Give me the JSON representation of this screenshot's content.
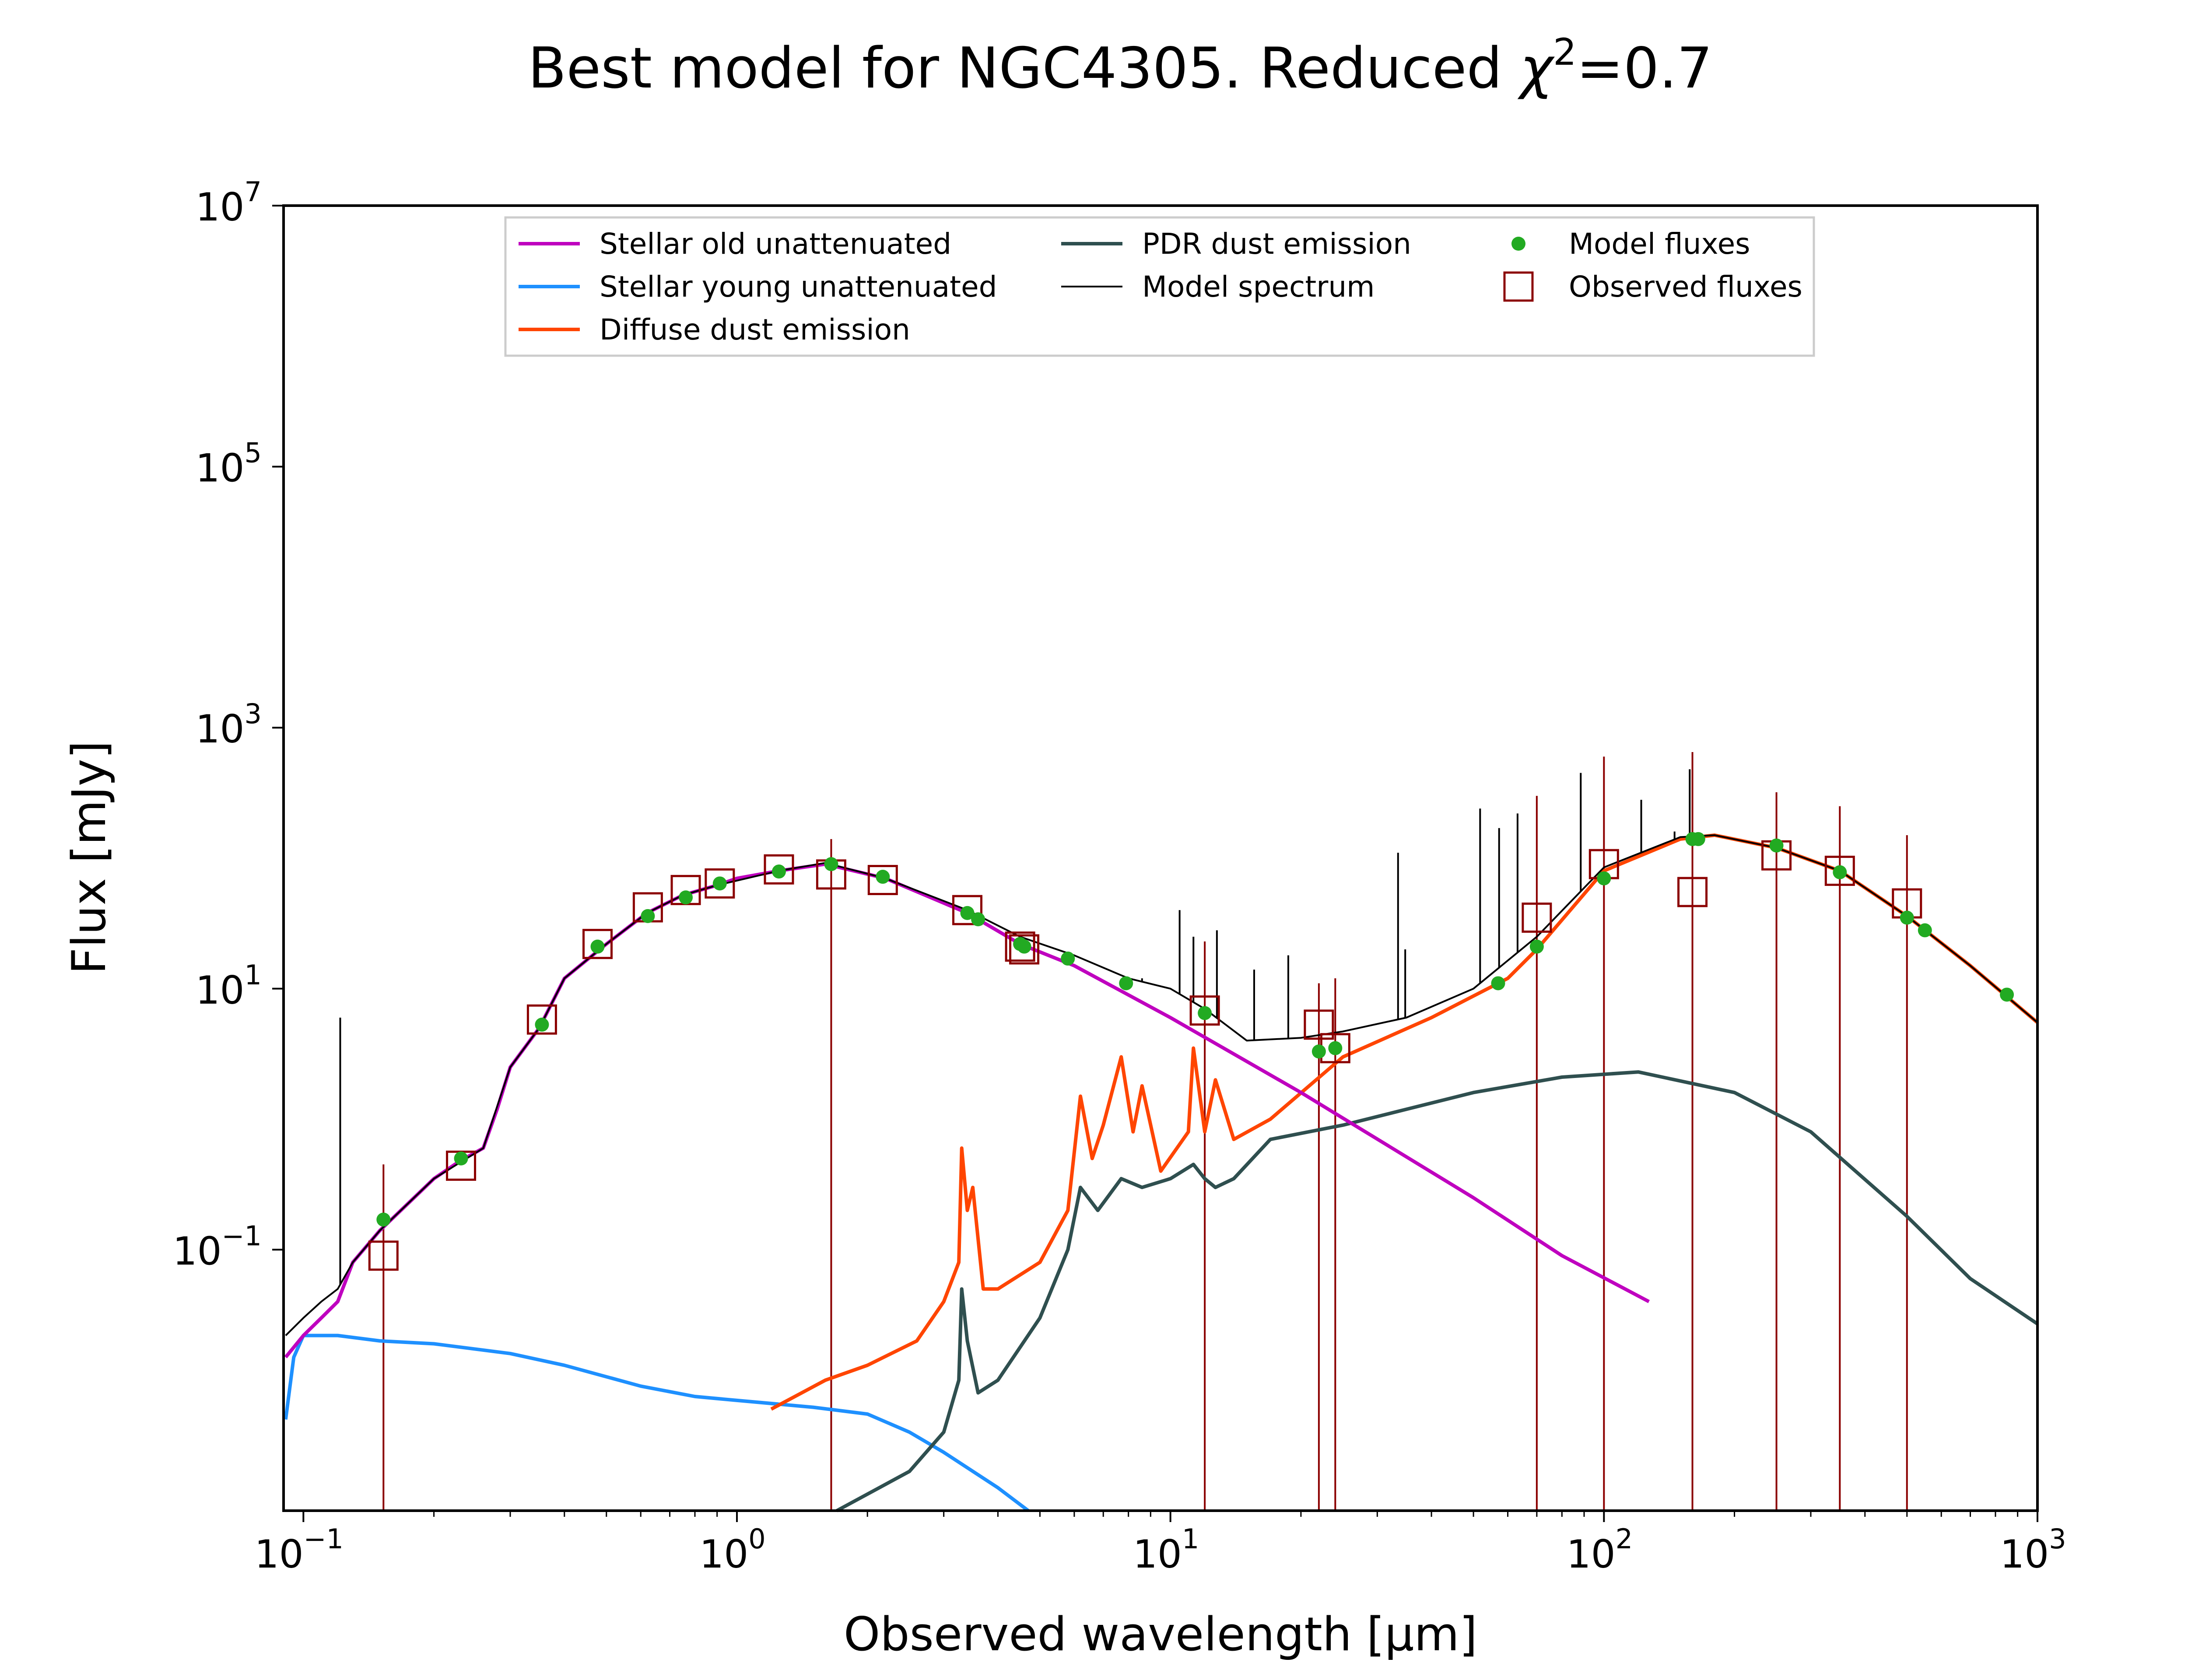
{
  "chart_data": {
    "type": "line",
    "title_text": "Best model for NGC4305. Reduced ",
    "title_chi": "χ",
    "title_sup": "2",
    "title_value": "=0.7",
    "xlabel": "Observed wavelength [μm]",
    "ylabel": "Flux [mJy]",
    "xscale": "log",
    "yscale": "log",
    "xlim": [
      0.09,
      1000
    ],
    "ylim": [
      0.001,
      10000000
    ],
    "x_ticks": [
      {
        "value": 0.1,
        "base": "10",
        "exp": "−1"
      },
      {
        "value": 1,
        "base": "10",
        "exp": "0"
      },
      {
        "value": 10,
        "base": "10",
        "exp": "1"
      },
      {
        "value": 100,
        "base": "10",
        "exp": "2"
      },
      {
        "value": 1000,
        "base": "10",
        "exp": "3"
      }
    ],
    "y_ticks": [
      {
        "value": 0.1,
        "base": "10",
        "exp": "−1"
      },
      {
        "value": 10,
        "base": "10",
        "exp": "1"
      },
      {
        "value": 1000,
        "base": "10",
        "exp": "3"
      },
      {
        "value": 100000,
        "base": "10",
        "exp": "5"
      },
      {
        "value": 10000000,
        "base": "10",
        "exp": "7"
      }
    ],
    "legend_position": "top-center",
    "colors": {
      "stellar_old": "#bf00bf",
      "stellar_young": "#1e90ff",
      "diffuse_dust": "#ff4500",
      "pdr_dust": "#2f4f4f",
      "model_spectrum": "#000000",
      "model_fluxes": "#22aa22",
      "observed_fluxes": "#8b0000"
    },
    "legend": [
      {
        "name": "Stellar old unattenuated",
        "kind": "line",
        "color_key": "stellar_old"
      },
      {
        "name": "Stellar young unattenuated",
        "kind": "line",
        "color_key": "stellar_young"
      },
      {
        "name": "Diffuse dust emission",
        "kind": "line",
        "color_key": "diffuse_dust"
      },
      {
        "name": "PDR dust emission",
        "kind": "line",
        "color_key": "pdr_dust"
      },
      {
        "name": "Model spectrum",
        "kind": "thin",
        "color_key": "model_spectrum"
      },
      {
        "name": "Model fluxes",
        "kind": "dot",
        "color_key": "model_fluxes"
      },
      {
        "name": "Observed fluxes",
        "kind": "square",
        "color_key": "observed_fluxes"
      }
    ],
    "series": [
      {
        "name": "Stellar old unattenuated",
        "color_key": "stellar_old",
        "x": [
          0.091,
          0.1,
          0.11,
          0.12,
          0.13,
          0.15,
          0.18,
          0.2,
          0.23,
          0.26,
          0.28,
          0.3,
          0.35,
          0.4,
          0.5,
          0.62,
          0.75,
          0.9,
          1.0,
          1.25,
          1.6,
          2.2,
          3.4,
          4.5,
          6.0,
          10,
          20,
          50,
          80,
          127
        ],
        "y": [
          0.015,
          0.022,
          0.03,
          0.04,
          0.08,
          0.14,
          0.25,
          0.35,
          0.48,
          0.6,
          1.2,
          2.5,
          5.0,
          12,
          22,
          38,
          52,
          62,
          70,
          80,
          90,
          70,
          38,
          22,
          15,
          6,
          1.6,
          0.25,
          0.09,
          0.04
        ]
      },
      {
        "name": "Stellar young unattenuated",
        "color_key": "stellar_young",
        "x": [
          0.091,
          0.095,
          0.1,
          0.12,
          0.15,
          0.2,
          0.3,
          0.4,
          0.6,
          0.8,
          1.0,
          1.5,
          2.0,
          2.5,
          3.0,
          4.0,
          4.7
        ],
        "y": [
          0.005,
          0.015,
          0.022,
          0.022,
          0.02,
          0.019,
          0.016,
          0.013,
          0.009,
          0.0075,
          0.007,
          0.0062,
          0.0055,
          0.004,
          0.0028,
          0.0015,
          0.001
        ]
      },
      {
        "name": "Diffuse dust emission",
        "color_key": "diffuse_dust",
        "x": [
          1.2,
          1.6,
          2.0,
          2.6,
          3.0,
          3.25,
          3.3,
          3.4,
          3.5,
          3.7,
          4.0,
          5.0,
          5.8,
          6.2,
          6.6,
          7.0,
          7.7,
          8.2,
          8.6,
          9.5,
          11.0,
          11.3,
          12.0,
          12.7,
          14.0,
          17.0,
          25.0,
          40.0,
          60.0,
          70.0,
          100.0,
          150.0,
          180.0,
          250.0,
          350.0,
          500.0,
          700.0,
          1000.0
        ],
        "y": [
          0.006,
          0.01,
          0.013,
          0.02,
          0.04,
          0.08,
          0.6,
          0.2,
          0.3,
          0.05,
          0.05,
          0.08,
          0.2,
          1.5,
          0.5,
          0.9,
          3.0,
          0.8,
          1.8,
          0.4,
          0.8,
          3.5,
          0.8,
          2.0,
          0.7,
          1.0,
          3.0,
          6.0,
          12,
          20,
          80,
          140,
          150,
          120,
          80,
          36,
          15,
          5.5
        ]
      },
      {
        "name": "PDR dust emission",
        "color_key": "pdr_dust",
        "x": [
          1.7,
          2.5,
          3.0,
          3.25,
          3.3,
          3.4,
          3.6,
          4.0,
          5.0,
          5.8,
          6.2,
          6.8,
          7.7,
          8.6,
          10.0,
          11.3,
          12.0,
          12.7,
          14.0,
          17.0,
          25.0,
          50.0,
          80.0,
          120.0,
          200.0,
          300.0,
          500.0,
          700.0,
          1000.0
        ],
        "y": [
          0.001,
          0.002,
          0.004,
          0.01,
          0.05,
          0.02,
          0.008,
          0.01,
          0.03,
          0.1,
          0.3,
          0.2,
          0.35,
          0.3,
          0.35,
          0.45,
          0.35,
          0.3,
          0.35,
          0.7,
          0.9,
          1.6,
          2.1,
          2.3,
          1.6,
          0.8,
          0.18,
          0.06,
          0.027
        ]
      },
      {
        "name": "Model spectrum",
        "color_key": "model_spectrum",
        "x": [
          0.091,
          0.1,
          0.11,
          0.12,
          0.13,
          0.15,
          0.2,
          0.26,
          0.3,
          0.35,
          0.4,
          0.5,
          0.62,
          0.75,
          0.9,
          1.25,
          1.6,
          2.2,
          3.4,
          4.5,
          6.0,
          8.0,
          10.0,
          12.0,
          15.0,
          20.0,
          25.0,
          35.0,
          50.0,
          70.0,
          100.0,
          150.0,
          180.0,
          250.0,
          350.0,
          500.0,
          700.0,
          1000.0
        ],
        "y": [
          0.022,
          0.03,
          0.04,
          0.05,
          0.08,
          0.14,
          0.35,
          0.6,
          2.5,
          5.0,
          12,
          22,
          38,
          52,
          62,
          80,
          92,
          70,
          40,
          25,
          18,
          12,
          10,
          7,
          4,
          4.2,
          4.7,
          6,
          10,
          25,
          85,
          145,
          150,
          120,
          80,
          36,
          15,
          5.5
        ]
      }
    ],
    "spectral_lines": [
      {
        "x": 0.1216,
        "y": 6.0
      },
      {
        "x": 8.6,
        "y": 12
      },
      {
        "x": 10.5,
        "y": 40
      },
      {
        "x": 11.3,
        "y": 25
      },
      {
        "x": 12.8,
        "y": 28
      },
      {
        "x": 15.6,
        "y": 14
      },
      {
        "x": 18.7,
        "y": 18
      },
      {
        "x": 33.5,
        "y": 110
      },
      {
        "x": 34.8,
        "y": 20
      },
      {
        "x": 51.8,
        "y": 240
      },
      {
        "x": 57.3,
        "y": 170
      },
      {
        "x": 63.2,
        "y": 220
      },
      {
        "x": 88.4,
        "y": 450
      },
      {
        "x": 121.9,
        "y": 280
      },
      {
        "x": 145.5,
        "y": 160
      },
      {
        "x": 157.7,
        "y": 480
      }
    ],
    "model_fluxes": {
      "x": [
        0.153,
        0.231,
        0.355,
        0.477,
        0.623,
        0.762,
        0.913,
        1.25,
        1.65,
        2.17,
        3.4,
        3.6,
        4.5,
        4.6,
        5.8,
        7.9,
        12.0,
        22.0,
        24.0,
        57.0,
        70.0,
        100.0,
        160.0,
        165.0,
        250.0,
        350.0,
        500.0,
        550.0,
        850.0
      ],
      "y": [
        0.17,
        0.5,
        5.3,
        21,
        36,
        50,
        64,
        79,
        90,
        72,
        38,
        34,
        22,
        21,
        17,
        11,
        6.5,
        3.3,
        3.5,
        11,
        21,
        70,
        140,
        140,
        125,
        78,
        35,
        28,
        9
      ]
    },
    "observed_fluxes": [
      {
        "x": 0.153,
        "y": 0.09,
        "err_top": 0.45,
        "err_bottom": 0.001
      },
      {
        "x": 0.231,
        "y": 0.44
      },
      {
        "x": 0.355,
        "y": 5.8
      },
      {
        "x": 0.477,
        "y": 22
      },
      {
        "x": 0.623,
        "y": 42
      },
      {
        "x": 0.762,
        "y": 57
      },
      {
        "x": 0.913,
        "y": 64
      },
      {
        "x": 1.25,
        "y": 82
      },
      {
        "x": 1.65,
        "y": 75,
        "err_top": 140,
        "err_bottom": 0.001
      },
      {
        "x": 2.17,
        "y": 68
      },
      {
        "x": 3.4,
        "y": 40
      },
      {
        "x": 4.5,
        "y": 21
      },
      {
        "x": 4.6,
        "y": 20
      },
      {
        "x": 12.0,
        "y": 6.8,
        "err_top": 23,
        "err_bottom": 0.001
      },
      {
        "x": 22.0,
        "y": 5.3,
        "err_top": 11,
        "err_bottom": 0.001
      },
      {
        "x": 24.0,
        "y": 3.5,
        "err_top": 12,
        "err_bottom": 0.001
      },
      {
        "x": 70.0,
        "y": 35,
        "err_top": 300,
        "err_bottom": 0.001
      },
      {
        "x": 100.0,
        "y": 90,
        "err_top": 600,
        "err_bottom": 0.001
      },
      {
        "x": 160.0,
        "y": 55,
        "err_top": 650,
        "err_bottom": 0.001
      },
      {
        "x": 250.0,
        "y": 105,
        "err_top": 320,
        "err_bottom": 0.001
      },
      {
        "x": 350.0,
        "y": 80,
        "err_top": 250,
        "err_bottom": 0.001
      },
      {
        "x": 500.0,
        "y": 45,
        "err_top": 150,
        "err_bottom": 0.001
      }
    ]
  }
}
